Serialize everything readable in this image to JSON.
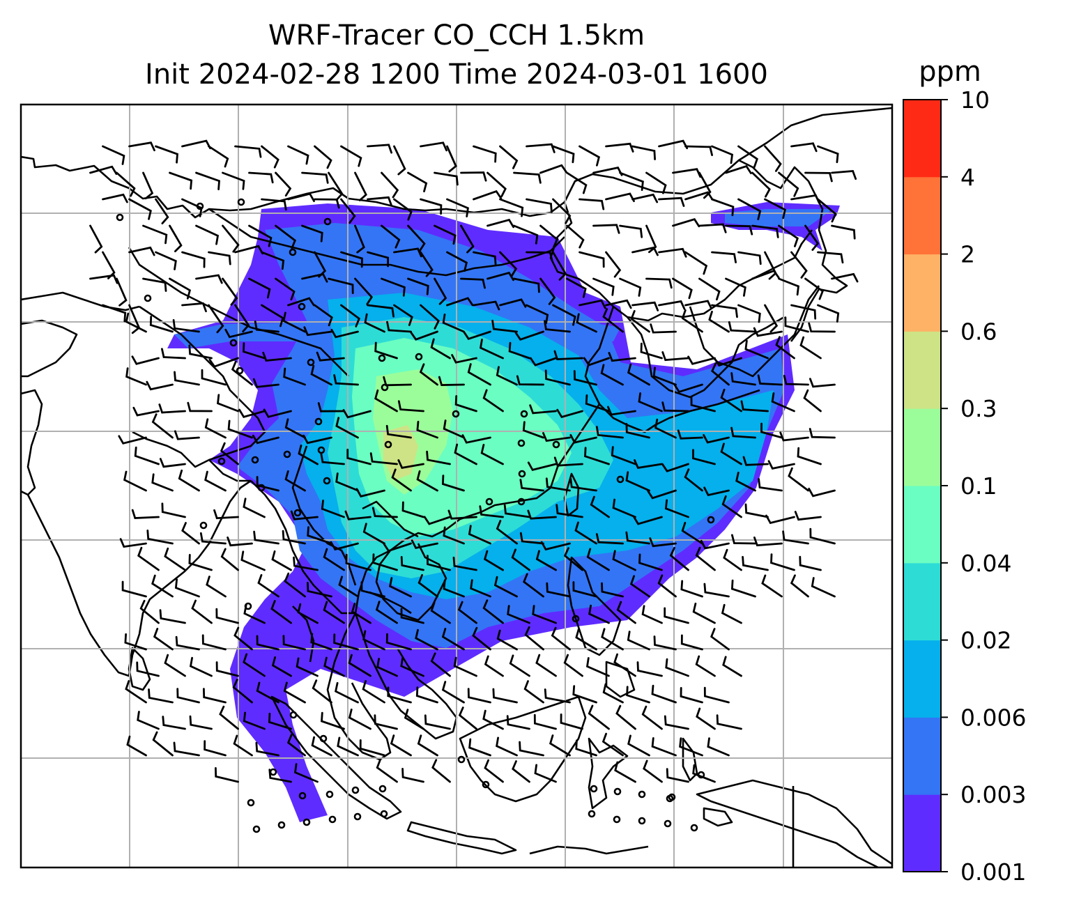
{
  "figure": {
    "title_line1": "WRF-Tracer CO_CCH 1.5km",
    "title_line2": "Init 2024-02-28 1200 Time 2024-03-01 1600"
  },
  "colorbar": {
    "unit": "ppm",
    "levels": [
      "0.001",
      "0.003",
      "0.006",
      "0.02",
      "0.04",
      "0.1",
      "0.3",
      "0.6",
      "2",
      "4",
      "10"
    ],
    "colors": [
      "#5f2cff",
      "#3375f5",
      "#05b0ec",
      "#2edcd6",
      "#6afec2",
      "#9bfd9a",
      "#cde386",
      "#fdb265",
      "#ff7238",
      "#ff2a15"
    ]
  },
  "map": {
    "projection_grid": "on",
    "coastline_color": "#000000",
    "wind_barbs": "black"
  }
}
